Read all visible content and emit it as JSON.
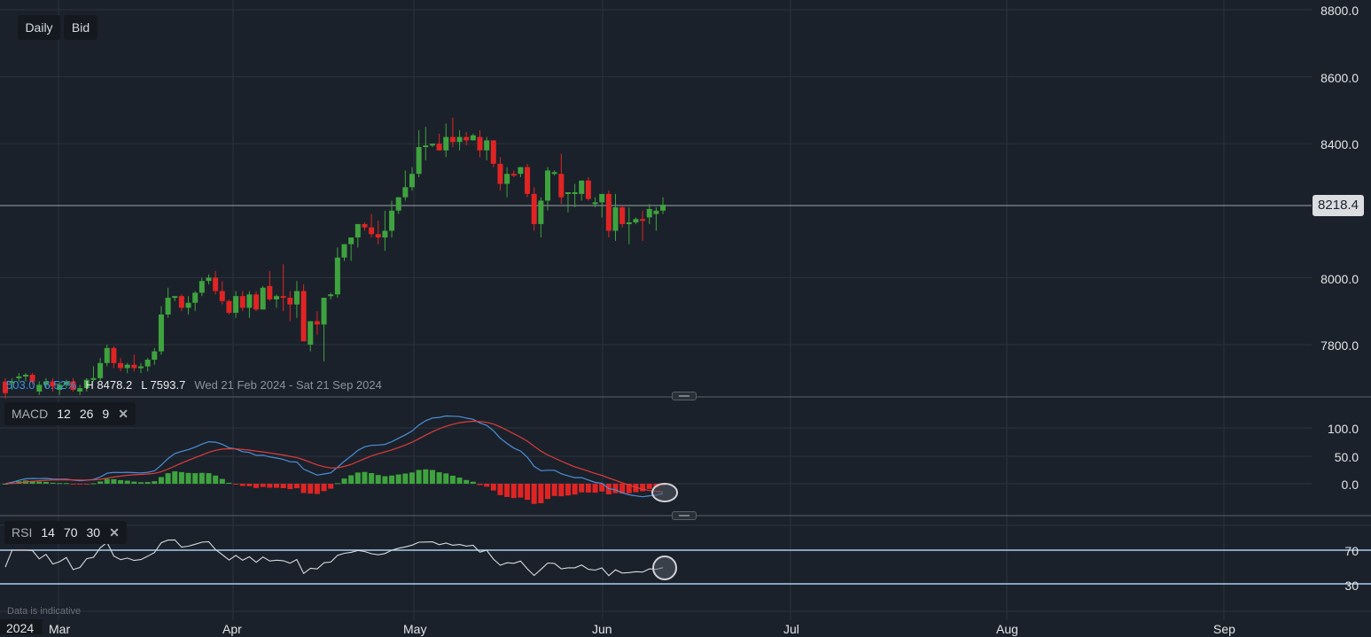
{
  "toolbar": {
    "interval_label": "Daily",
    "price_type_label": "Bid"
  },
  "stats": {
    "change": "503.0",
    "change_pct": "6.52%",
    "high": "H 8478.2",
    "low": "L 7593.7",
    "range": "Wed 21 Feb 2024 - Sat 21 Sep 2024"
  },
  "current_price": "8218.4",
  "price_axis": {
    "labels": [
      "8800.0",
      "8600.0",
      "8400.0",
      "8000.0",
      "7800.0"
    ]
  },
  "macd": {
    "name": "MACD",
    "fast": "12",
    "slow": "26",
    "signal": "9",
    "close": "✕",
    "axis": [
      "100.0",
      "50.0",
      "0.0"
    ]
  },
  "rsi": {
    "name": "RSI",
    "period": "14",
    "upper": "70",
    "lower": "30",
    "close": "✕",
    "axis": [
      "70",
      "30"
    ]
  },
  "time_axis": {
    "year": "2024",
    "months": [
      "Mar",
      "Apr",
      "May",
      "Jun",
      "Jul",
      "Aug",
      "Sep"
    ]
  },
  "footer_note": "Data is indicative",
  "colors": {
    "up": "#3ea33e",
    "down": "#e02424",
    "macd_line": "#4a90d9",
    "signal_line": "#e03c3c",
    "rsi_line": "#d8dadd",
    "rsi_band": "#a9cdf0",
    "background": "#1b212a",
    "grid": "#2c333d"
  },
  "chart_data": {
    "type": "candlestick",
    "title": "Daily Bid",
    "ylabel": "Price",
    "ylim": [
      7660,
      8800
    ],
    "x_months": [
      "Mar",
      "Apr",
      "May",
      "Jun",
      "Jul",
      "Aug",
      "Sep"
    ],
    "ohlc": [
      [
        7690,
        7700,
        7640,
        7655
      ],
      [
        7690,
        7700,
        7665,
        7690
      ],
      [
        7700,
        7715,
        7690,
        7705
      ],
      [
        7705,
        7715,
        7690,
        7710
      ],
      [
        7710,
        7715,
        7680,
        7690
      ],
      [
        7660,
        7690,
        7650,
        7680
      ],
      [
        7680,
        7700,
        7670,
        7690
      ],
      [
        7690,
        7700,
        7660,
        7675
      ],
      [
        7665,
        7690,
        7650,
        7680
      ],
      [
        7680,
        7695,
        7670,
        7690
      ],
      [
        7690,
        7700,
        7660,
        7665
      ],
      [
        7660,
        7680,
        7650,
        7670
      ],
      [
        7670,
        7700,
        7660,
        7695
      ],
      [
        7695,
        7735,
        7690,
        7700
      ],
      [
        7700,
        7760,
        7690,
        7745
      ],
      [
        7745,
        7800,
        7735,
        7790
      ],
      [
        7790,
        7795,
        7730,
        7745
      ],
      [
        7745,
        7760,
        7720,
        7730
      ],
      [
        7730,
        7745,
        7715,
        7740
      ],
      [
        7740,
        7770,
        7720,
        7730
      ],
      [
        7730,
        7745,
        7715,
        7735
      ],
      [
        7735,
        7760,
        7720,
        7755
      ],
      [
        7755,
        7790,
        7740,
        7780
      ],
      [
        7780,
        7915,
        7770,
        7890
      ],
      [
        7890,
        7970,
        7880,
        7940
      ],
      [
        7940,
        7945,
        7930,
        7945
      ],
      [
        7945,
        7950,
        7900,
        7910
      ],
      [
        7910,
        7945,
        7890,
        7925
      ],
      [
        7925,
        7960,
        7900,
        7955
      ],
      [
        7955,
        8000,
        7945,
        7990
      ],
      [
        7990,
        8010,
        7980,
        8000
      ],
      [
        8000,
        8020,
        7950,
        7960
      ],
      [
        7960,
        7990,
        7920,
        7930
      ],
      [
        7930,
        7935,
        7890,
        7895
      ],
      [
        7895,
        7960,
        7880,
        7945
      ],
      [
        7945,
        7960,
        7900,
        7910
      ],
      [
        7910,
        7960,
        7880,
        7950
      ],
      [
        7950,
        7960,
        7900,
        7905
      ],
      [
        7905,
        7975,
        7910,
        7970
      ],
      [
        7975,
        8020,
        7930,
        7935
      ],
      [
        7935,
        7950,
        7910,
        7945
      ],
      [
        7945,
        8040,
        7900,
        7940
      ],
      [
        7940,
        7960,
        7870,
        7920
      ],
      [
        7920,
        7990,
        7880,
        7960
      ],
      [
        7960,
        7980,
        7820,
        7810
      ],
      [
        7800,
        7860,
        7780,
        7870
      ],
      [
        7870,
        7900,
        7830,
        7860
      ],
      [
        7860,
        7930,
        7750,
        7940
      ],
      [
        7945,
        7955,
        7935,
        7950
      ],
      [
        7950,
        8090,
        7940,
        8060
      ],
      [
        8060,
        8100,
        8050,
        8100
      ],
      [
        8100,
        8110,
        8050,
        8120
      ],
      [
        8120,
        8150,
        8090,
        8160
      ],
      [
        8160,
        8165,
        8140,
        8150
      ],
      [
        8150,
        8190,
        8120,
        8130
      ],
      [
        8130,
        8170,
        8100,
        8120
      ],
      [
        8120,
        8200,
        8080,
        8140
      ],
      [
        8140,
        8230,
        8120,
        8200
      ],
      [
        8200,
        8235,
        8190,
        8240
      ],
      [
        8240,
        8320,
        8230,
        8270
      ],
      [
        8270,
        8330,
        8260,
        8310
      ],
      [
        8310,
        8440,
        8300,
        8390
      ],
      [
        8390,
        8450,
        8350,
        8395
      ],
      [
        8395,
        8400,
        8390,
        8400
      ],
      [
        8400,
        8430,
        8380,
        8380
      ],
      [
        8380,
        8460,
        8360,
        8420
      ],
      [
        8420,
        8478,
        8390,
        8405
      ],
      [
        8405,
        8440,
        8380,
        8420
      ],
      [
        8420,
        8435,
        8395,
        8410
      ],
      [
        8410,
        8430,
        8410,
        8425
      ],
      [
        8420,
        8440,
        8360,
        8380
      ],
      [
        8380,
        8420,
        8350,
        8410
      ],
      [
        8410,
        8400,
        8330,
        8340
      ],
      [
        8340,
        8360,
        8260,
        8280
      ],
      [
        8280,
        8330,
        8240,
        8310
      ],
      [
        8310,
        8320,
        8300,
        8305
      ],
      [
        8310,
        8330,
        8300,
        8330
      ],
      [
        8330,
        8340,
        8240,
        8250
      ],
      [
        8250,
        8270,
        8140,
        8160
      ],
      [
        8160,
        8240,
        8120,
        8230
      ],
      [
        8230,
        8330,
        8200,
        8320
      ],
      [
        8315,
        8320,
        8305,
        8315
      ],
      [
        8310,
        8370,
        8220,
        8240
      ],
      [
        8255,
        8250,
        8195,
        8255
      ],
      [
        8250,
        8280,
        8210,
        8255
      ],
      [
        8250,
        8290,
        8230,
        8290
      ],
      [
        8290,
        8300,
        8230,
        8235
      ],
      [
        8220,
        8240,
        8210,
        8225
      ],
      [
        8225,
        8250,
        8180,
        8250
      ],
      [
        8250,
        8260,
        8120,
        8140
      ],
      [
        8140,
        8250,
        8110,
        8210
      ],
      [
        8210,
        8215,
        8150,
        8160
      ],
      [
        8160,
        8210,
        8100,
        8165
      ],
      [
        8165,
        8180,
        8160,
        8175
      ],
      [
        8175,
        8200,
        8110,
        8170
      ],
      [
        8180,
        8220,
        8160,
        8205
      ],
      [
        8190,
        8210,
        8140,
        8200
      ],
      [
        8200,
        8240,
        8190,
        8218
      ]
    ],
    "macd_series": [
      {
        "name": "MACD",
        "color": "#4a90d9"
      },
      {
        "name": "Signal",
        "color": "#e03c3c"
      },
      {
        "name": "Histogram",
        "color": "up:#3ea33e / down:#e02424"
      }
    ],
    "macd_ylim": [
      -40,
      120
    ],
    "rsi_levels": [
      70,
      30
    ],
    "rsi_ylim": [
      20,
      85
    ]
  }
}
